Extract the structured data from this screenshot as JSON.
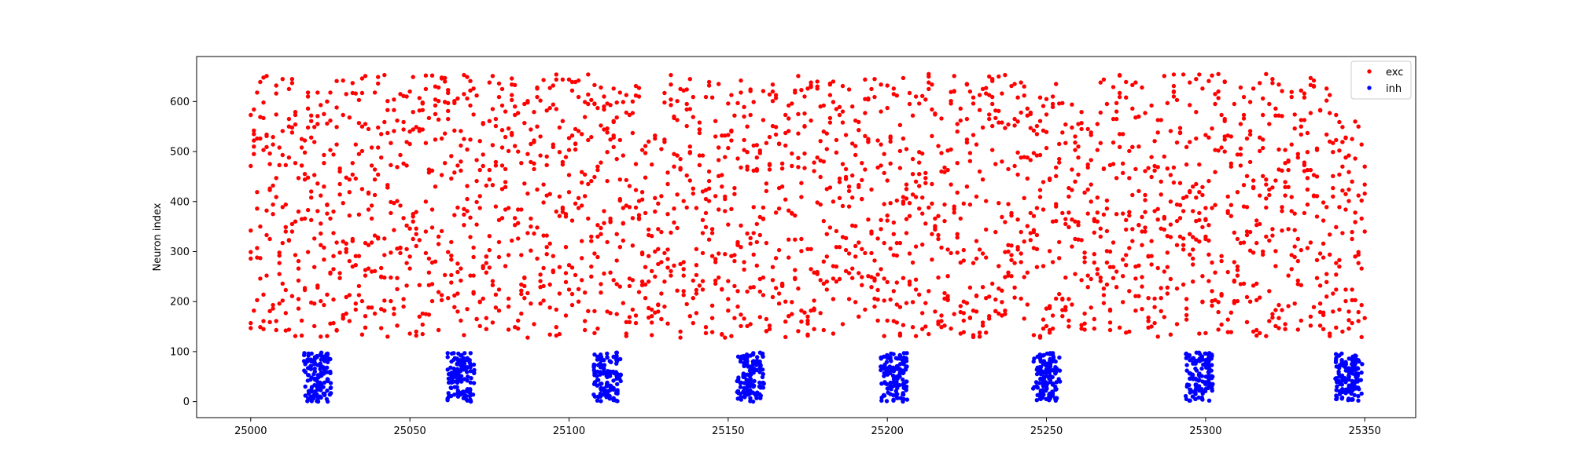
{
  "chart_data": {
    "type": "scatter",
    "title": "",
    "xlabel": "",
    "ylabel": "Neuron index",
    "xlim": [
      24983,
      25366
    ],
    "ylim": [
      -32,
      690
    ],
    "xticks": [
      25000,
      25050,
      25100,
      25150,
      25200,
      25250,
      25300,
      25350
    ],
    "yticks": [
      0,
      100,
      200,
      300,
      400,
      500,
      600
    ],
    "grid": false,
    "legend_position": "top-right",
    "series": [
      {
        "name": "exc",
        "color": "#ff0000",
        "neuron_range": [
          128,
          655
        ],
        "x_range": [
          25000,
          25350
        ],
        "approx_spike_count": 2400
      },
      {
        "name": "inh",
        "color": "#0000ff",
        "neuron_range": [
          0,
          98
        ],
        "burst_centers": [
          25021,
          25066,
          25112,
          25157,
          25202,
          25250,
          25298,
          25345
        ],
        "burst_halfwidth": 4,
        "spikes_per_burst": 130
      }
    ]
  }
}
